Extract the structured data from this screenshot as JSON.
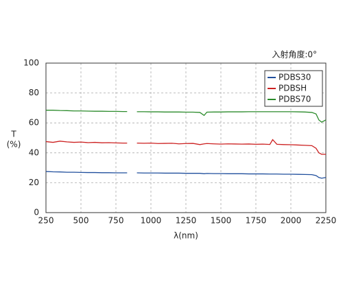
{
  "chart_data": {
    "type": "line",
    "annotation": "入射角度:0°",
    "xlabel": "λ(nm)",
    "ylabel": [
      "T",
      "(%)"
    ],
    "x": [
      250,
      300,
      350,
      400,
      450,
      500,
      550,
      600,
      650,
      700,
      750,
      800,
      830,
      850,
      900,
      950,
      1000,
      1050,
      1100,
      1150,
      1200,
      1250,
      1300,
      1350,
      1380,
      1400,
      1450,
      1500,
      1550,
      1600,
      1650,
      1700,
      1750,
      1800,
      1850,
      1870,
      1900,
      1950,
      2000,
      2050,
      2100,
      2150,
      2180,
      2200,
      2220,
      2250
    ],
    "series": [
      {
        "name": "PDBS30",
        "color": "#1f4e9c",
        "values": [
          27.5,
          27.3,
          27.2,
          27.0,
          27.0,
          26.9,
          26.8,
          26.8,
          26.7,
          26.7,
          26.6,
          26.6,
          26.6,
          null,
          26.6,
          26.5,
          26.5,
          26.5,
          26.4,
          26.4,
          26.4,
          26.3,
          26.3,
          26.3,
          26.0,
          26.2,
          26.1,
          26.1,
          26.0,
          26.0,
          26.0,
          25.9,
          25.9,
          25.9,
          25.8,
          25.8,
          25.8,
          25.7,
          25.7,
          25.6,
          25.5,
          25.4,
          24.8,
          23.5,
          23.0,
          23.5
        ]
      },
      {
        "name": "PDBSH",
        "color": "#cc1f1f",
        "values": [
          47.5,
          47.0,
          47.8,
          47.3,
          47.0,
          47.2,
          46.8,
          47.0,
          46.7,
          46.8,
          46.6,
          46.5,
          46.5,
          null,
          46.5,
          46.4,
          46.5,
          46.2,
          46.3,
          46.4,
          46.0,
          46.2,
          46.3,
          45.5,
          46.0,
          46.2,
          46.0,
          45.8,
          46.0,
          45.9,
          45.8,
          45.9,
          45.7,
          45.8,
          45.6,
          48.8,
          45.7,
          45.5,
          45.4,
          45.2,
          45.0,
          44.8,
          43.0,
          40.0,
          39.0,
          39.0
        ]
      },
      {
        "name": "PDBS70",
        "color": "#2a8a2a",
        "values": [
          68.5,
          68.5,
          68.3,
          68.2,
          68.0,
          68.0,
          67.9,
          67.8,
          67.8,
          67.7,
          67.7,
          67.6,
          67.6,
          null,
          67.5,
          67.5,
          67.4,
          67.4,
          67.3,
          67.3,
          67.3,
          67.2,
          67.2,
          67.0,
          65.0,
          67.2,
          67.3,
          67.3,
          67.4,
          67.4,
          67.4,
          67.5,
          67.5,
          67.5,
          67.5,
          67.5,
          67.5,
          67.5,
          67.5,
          67.4,
          67.3,
          67.0,
          66.0,
          62.0,
          60.5,
          62.0
        ]
      }
    ],
    "xlim": [
      250,
      2250
    ],
    "xticks": [
      250,
      500,
      750,
      1000,
      1250,
      1500,
      1750,
      2000,
      2250
    ],
    "ylim": [
      0,
      100
    ],
    "yticks": [
      0,
      20,
      40,
      60,
      80,
      100
    ],
    "grid": true,
    "legend": "upper-right"
  }
}
